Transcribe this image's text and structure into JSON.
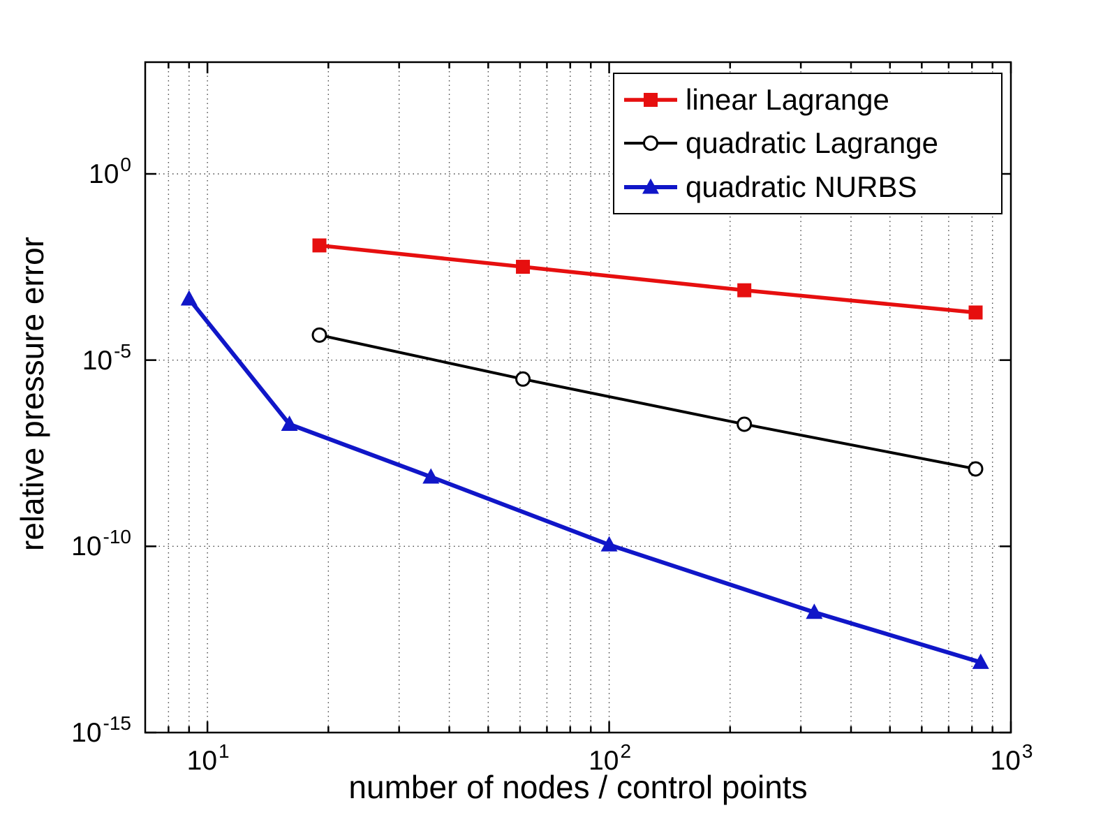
{
  "chart_data": {
    "type": "line",
    "x_scale": "log",
    "y_scale": "log",
    "xlabel": "number of nodes / control points",
    "ylabel": "relative pressure error",
    "xlim": [
      7,
      1000
    ],
    "ylim": [
      1e-15,
      1000
    ],
    "grid": "on",
    "legend_position": "top-right",
    "tick_base": "10",
    "x_major_ticks": [
      10,
      100,
      1000
    ],
    "x_tick_exponents": [
      "1",
      "2",
      "3"
    ],
    "y_major_ticks": [
      1,
      1e-05,
      1e-10,
      1e-15
    ],
    "y_tick_exponents": [
      "0",
      "-5",
      "-10",
      "-15"
    ],
    "axis_color": "#000000",
    "grid_color": "#444444",
    "series": [
      {
        "name": "linear Lagrange",
        "color": "#e60f0f",
        "marker": "square",
        "x": [
          19,
          61,
          217,
          817
        ],
        "y": [
          0.012,
          0.0032,
          0.00075,
          0.00019
        ]
      },
      {
        "name": "quadratic Lagrange",
        "color": "#000000",
        "marker": "circle-open",
        "x": [
          19,
          61,
          217,
          817
        ],
        "y": [
          4.7e-05,
          3.1e-06,
          1.9e-07,
          1.2e-08
        ]
      },
      {
        "name": "quadratic NURBS",
        "color": "#1016c8",
        "marker": "triangle-up",
        "x": [
          9,
          16,
          36,
          100,
          324,
          841
        ],
        "y": [
          0.00044,
          1.9e-07,
          7.3e-09,
          1.1e-10,
          1.7e-12,
          7.7e-14
        ]
      }
    ]
  }
}
